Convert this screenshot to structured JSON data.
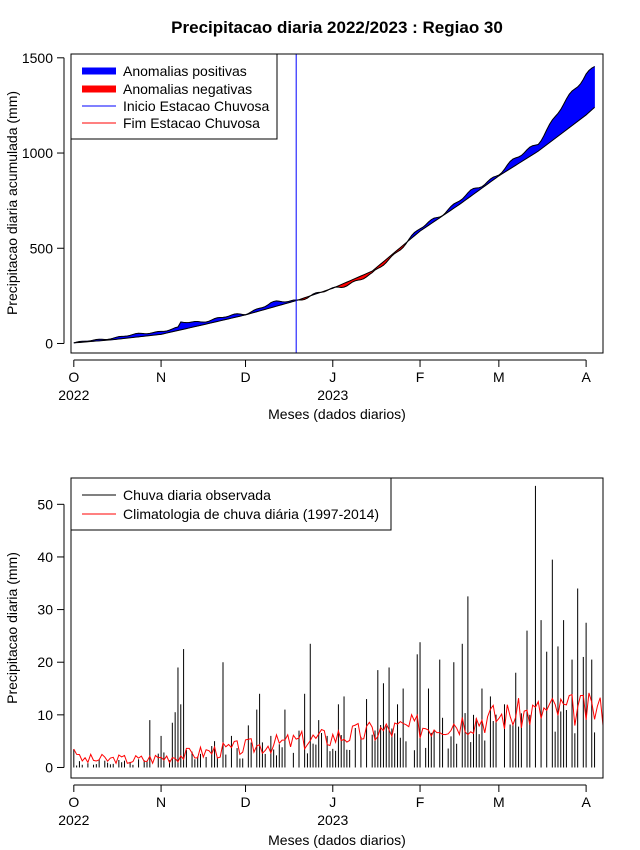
{
  "colors": {
    "positive": "#0000ff",
    "negative": "#ff0000",
    "start_line": "#0000ff",
    "end_line": "#ff0000",
    "observed": "#000000",
    "climatology": "#ff0000"
  },
  "chart_data": [
    {
      "type": "area",
      "title": "Precipitacao diaria 2022/2023 : Regiao 30",
      "xlabel": "Meses (dados diarios)",
      "ylabel": "Precipitacao diaria acumulada (mm)",
      "x_range": [
        "2022-09-30",
        "2023-04-07"
      ],
      "ylim": [
        -50,
        1520
      ],
      "yticks": [
        0,
        500,
        1000,
        1500
      ],
      "month_ticks": [
        {
          "date": "2022-10-01",
          "label": "O"
        },
        {
          "date": "2022-11-01",
          "label": "N"
        },
        {
          "date": "2022-12-01",
          "label": "D"
        },
        {
          "date": "2023-01-01",
          "label": "J"
        },
        {
          "date": "2023-02-01",
          "label": "F"
        },
        {
          "date": "2023-03-01",
          "label": "M"
        },
        {
          "date": "2023-04-01",
          "label": "A"
        }
      ],
      "year_labels": [
        {
          "date": "2022-10-01",
          "label": "2022"
        },
        {
          "date": "2023-01-01",
          "label": "2023"
        }
      ],
      "rainy_season_start": "2022-12-19",
      "legend": {
        "position": "top-left",
        "entries": [
          {
            "label": "Anomalias positivas",
            "color": "#0000ff",
            "style": "thick"
          },
          {
            "label": "Anomalias negativas",
            "color": "#ff0000",
            "style": "thick"
          },
          {
            "label": "Inicio Estacao Chuvosa",
            "color": "#0000ff",
            "style": "thin"
          },
          {
            "label": "Fim Estacao Chuvosa",
            "color": "#ff0000",
            "style": "thin"
          }
        ]
      },
      "series": [
        {
          "name": "Climatology",
          "points": [
            [
              "2022-10-01",
              3
            ],
            [
              "2022-10-15",
              20
            ],
            [
              "2022-11-01",
              48
            ],
            [
              "2022-11-15",
              95
            ],
            [
              "2022-12-01",
              150
            ],
            [
              "2022-12-19",
              225
            ],
            [
              "2023-01-01",
              290
            ],
            [
              "2023-01-15",
              380
            ],
            [
              "2023-02-01",
              590
            ],
            [
              "2023-02-15",
              730
            ],
            [
              "2023-03-01",
              880
            ],
            [
              "2023-03-15",
              1010
            ],
            [
              "2023-04-01",
              1200
            ],
            [
              "2023-04-04",
              1240
            ]
          ]
        },
        {
          "name": "Observed",
          "points": [
            [
              "2022-10-01",
              3
            ],
            [
              "2022-10-15",
              30
            ],
            [
              "2022-11-01",
              65
            ],
            [
              "2022-11-07",
              80
            ],
            [
              "2022-11-08",
              108
            ],
            [
              "2022-11-15",
              115
            ],
            [
              "2022-12-01",
              158
            ],
            [
              "2022-12-10",
              210
            ],
            [
              "2022-12-19",
              228
            ],
            [
              "2023-01-01",
              285
            ],
            [
              "2023-01-15",
              360
            ],
            [
              "2023-02-01",
              600
            ],
            [
              "2023-02-15",
              750
            ],
            [
              "2023-03-01",
              895
            ],
            [
              "2023-03-15",
              1060
            ],
            [
              "2023-04-01",
              1420
            ],
            [
              "2023-04-04",
              1460
            ]
          ]
        }
      ]
    },
    {
      "type": "bar",
      "xlabel": "Meses (dados diarios)",
      "ylabel": "Precipitacao diaria (mm)",
      "x_range": [
        "2022-09-30",
        "2023-04-07"
      ],
      "ylim": [
        -2,
        55
      ],
      "yticks": [
        0,
        10,
        20,
        30,
        40,
        50
      ],
      "month_ticks": [
        {
          "date": "2022-10-01",
          "label": "O"
        },
        {
          "date": "2022-11-01",
          "label": "N"
        },
        {
          "date": "2022-12-01",
          "label": "D"
        },
        {
          "date": "2023-01-01",
          "label": "J"
        },
        {
          "date": "2023-02-01",
          "label": "F"
        },
        {
          "date": "2023-03-01",
          "label": "M"
        },
        {
          "date": "2023-04-01",
          "label": "A"
        }
      ],
      "year_labels": [
        {
          "date": "2022-10-01",
          "label": "2022"
        },
        {
          "date": "2023-01-01",
          "label": "2023"
        }
      ],
      "legend": {
        "position": "top-left",
        "entries": [
          {
            "label": "Chuva diaria observada",
            "color": "#000000"
          },
          {
            "label": "Climatologia de chuva diária (1997-2014)",
            "color": "#ff0000"
          }
        ]
      },
      "observed_peaks": [
        [
          "2022-10-01",
          3.5
        ],
        [
          "2022-10-03",
          1.2
        ],
        [
          "2022-10-06",
          0.8
        ],
        [
          "2022-10-10",
          1.5
        ],
        [
          "2022-10-14",
          0.6
        ],
        [
          "2022-10-18",
          1.0
        ],
        [
          "2022-10-22",
          0.5
        ],
        [
          "2022-10-28",
          9.0
        ],
        [
          "2022-11-01",
          6.0
        ],
        [
          "2022-11-05",
          8.5
        ],
        [
          "2022-11-06",
          10.5
        ],
        [
          "2022-11-07",
          19.0
        ],
        [
          "2022-11-08",
          12.0
        ],
        [
          "2022-11-09",
          22.5
        ],
        [
          "2022-11-12",
          3.0
        ],
        [
          "2022-11-17",
          2.0
        ],
        [
          "2022-11-20",
          5.0
        ],
        [
          "2022-11-23",
          20.0
        ],
        [
          "2022-11-26",
          6.0
        ],
        [
          "2022-12-02",
          8.0
        ],
        [
          "2022-12-05",
          11.0
        ],
        [
          "2022-12-06",
          14.0
        ],
        [
          "2022-12-10",
          6.0
        ],
        [
          "2022-12-15",
          11.0
        ],
        [
          "2022-12-20",
          7.0
        ],
        [
          "2022-12-22",
          14.0
        ],
        [
          "2022-12-24",
          23.5
        ],
        [
          "2022-12-27",
          9.0
        ],
        [
          "2022-12-30",
          6.0
        ],
        [
          "2023-01-03",
          12.0
        ],
        [
          "2023-01-05",
          13.5
        ],
        [
          "2023-01-09",
          7.5
        ],
        [
          "2023-01-13",
          13.0
        ],
        [
          "2023-01-17",
          18.5
        ],
        [
          "2023-01-19",
          16.0
        ],
        [
          "2023-01-21",
          19.0
        ],
        [
          "2023-01-24",
          12.0
        ],
        [
          "2023-01-26",
          15.0
        ],
        [
          "2023-01-31",
          21.5
        ],
        [
          "2023-02-01",
          23.8
        ],
        [
          "2023-02-04",
          15.0
        ],
        [
          "2023-02-08",
          20.5
        ],
        [
          "2023-02-13",
          20.0
        ],
        [
          "2023-02-16",
          23.5
        ],
        [
          "2023-02-18",
          32.5
        ],
        [
          "2023-02-20",
          10.0
        ],
        [
          "2023-02-23",
          15.0
        ],
        [
          "2023-02-26",
          13.5
        ],
        [
          "2023-03-03",
          12.0
        ],
        [
          "2023-03-07",
          18.0
        ],
        [
          "2023-03-11",
          26.0
        ],
        [
          "2023-03-14",
          53.5
        ],
        [
          "2023-03-16",
          28.0
        ],
        [
          "2023-03-18",
          22.0
        ],
        [
          "2023-03-20",
          39.5
        ],
        [
          "2023-03-22",
          23.0
        ],
        [
          "2023-03-24",
          28.0
        ],
        [
          "2023-03-27",
          20.5
        ],
        [
          "2023-03-29",
          34.0
        ],
        [
          "2023-03-31",
          21.0
        ],
        [
          "2023-04-01",
          27.5
        ],
        [
          "2023-04-03",
          20.5
        ]
      ],
      "climatology_daily_range": [
        0.8,
        16.5
      ]
    }
  ]
}
